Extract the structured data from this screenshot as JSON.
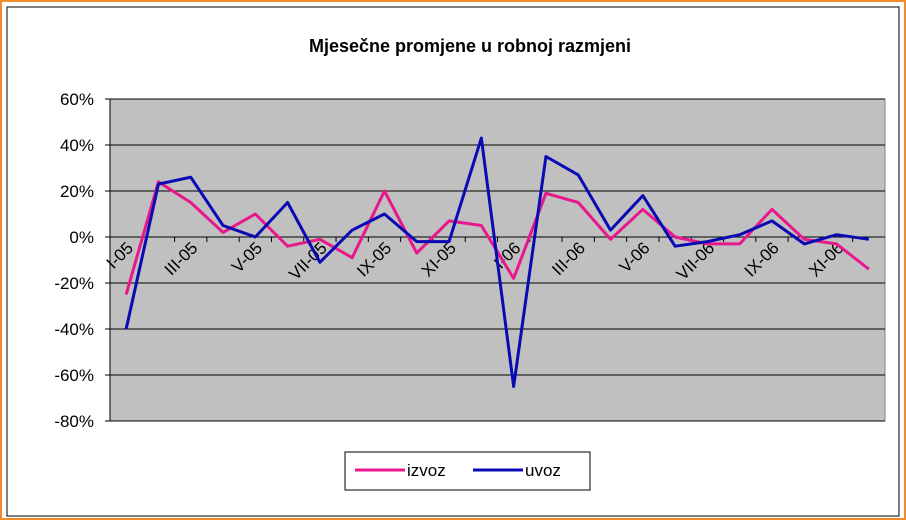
{
  "chart_data": {
    "type": "line",
    "title": "Mjesečne promjene u robnoj razmjeni",
    "categories": [
      "I-05",
      null,
      "III-05",
      null,
      "V-05",
      null,
      "VII-05",
      null,
      "IX-05",
      null,
      "XI-05",
      null,
      "I-06",
      null,
      "III-06",
      null,
      "V-06",
      null,
      "VII-06",
      null,
      "IX-06",
      null,
      "XI-06",
      null
    ],
    "series": [
      {
        "name": "izvoz",
        "color": "#e8178c",
        "values": [
          -25,
          24,
          15,
          2,
          10,
          -4,
          -1,
          -9,
          20,
          -7,
          7,
          5,
          -18,
          19,
          15,
          -1,
          12,
          0,
          -3,
          -3,
          12,
          -1,
          -3,
          -14
        ]
      },
      {
        "name": "uvoz",
        "color": "#0a0ab4",
        "values": [
          -40,
          23,
          26,
          5,
          0,
          15,
          -11,
          3,
          10,
          -2,
          -2,
          43,
          -65,
          35,
          27,
          3,
          18,
          -4,
          -2,
          1,
          7,
          -3,
          1,
          -1
        ]
      }
    ],
    "ylim": [
      -80,
      60
    ],
    "yticks": [
      {
        "value": -80,
        "label": "-80%"
      },
      {
        "value": -60,
        "label": "-60%"
      },
      {
        "value": -40,
        "label": "-40%"
      },
      {
        "value": -20,
        "label": "-20%"
      },
      {
        "value": 0,
        "label": "0%"
      },
      {
        "value": 20,
        "label": "20%"
      },
      {
        "value": 40,
        "label": "40%"
      },
      {
        "value": 60,
        "label": "60%"
      }
    ],
    "grid": true,
    "legend": "bottom"
  }
}
